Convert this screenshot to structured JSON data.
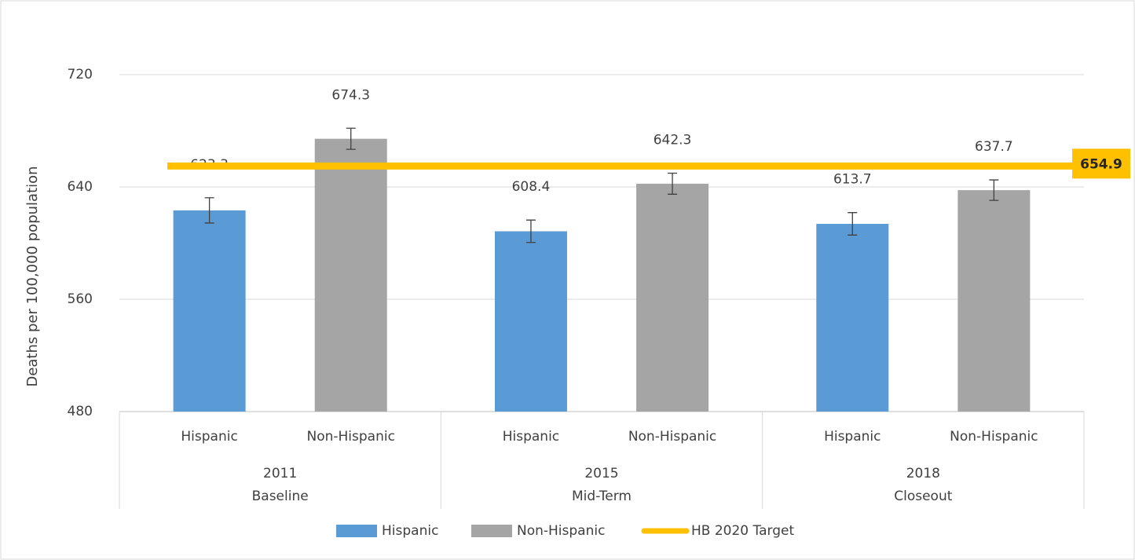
{
  "chart_data": {
    "type": "bar",
    "y_axis_label": "Deaths per 100,000 population",
    "categories": [
      [
        "2011",
        "Baseline"
      ],
      [
        "2015",
        "Mid-Term"
      ],
      [
        "2018",
        "Closeout"
      ]
    ],
    "series": [
      {
        "name": "Hispanic",
        "color": "#5b9bd5",
        "values": [
          623.3,
          608.4,
          613.7
        ],
        "errors": [
          9,
          8,
          8
        ]
      },
      {
        "name": "Non-Hispanic",
        "color": "#a5a5a5",
        "values": [
          674.3,
          642.3,
          637.7
        ],
        "errors": [
          7.5,
          7.5,
          7.3
        ]
      }
    ],
    "target": {
      "name": "HB 2020 Target",
      "value": 654.9,
      "color": "#ffc000"
    },
    "ylim": [
      480,
      720
    ],
    "yticks": [
      480,
      560,
      640,
      720
    ],
    "grid": true
  }
}
